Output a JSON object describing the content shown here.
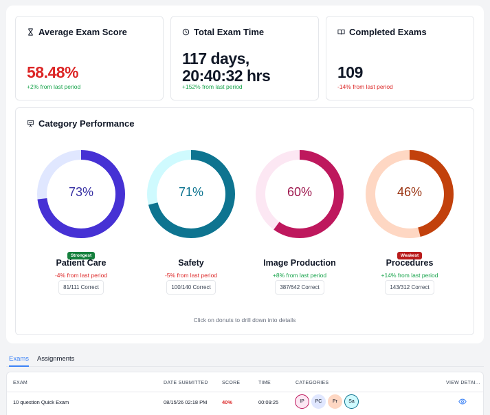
{
  "stats": [
    {
      "title": "Average Exam Score",
      "icon": "hourglass-icon",
      "value": "58.48%",
      "value_color": "#dc2626",
      "delta": "+2% from last period",
      "delta_type": "pos"
    },
    {
      "title": "Total Exam Time",
      "icon": "clock-icon",
      "value_line1": "117 days,",
      "value_line2": "20:40:32 hrs",
      "delta": "+152% from last period",
      "delta_type": "pos"
    },
    {
      "title": "Completed Exams",
      "icon": "book-icon",
      "value": "109",
      "delta": "-14% from last period",
      "delta_type": "neg"
    }
  ],
  "category_performance": {
    "title": "Category Performance",
    "icon": "presentation-icon",
    "hint": "Click on donuts to drill down into details",
    "categories": [
      {
        "name": "Patient Care",
        "percent": 73,
        "percent_label": "73%",
        "color": "#4631d4",
        "track": "#e0e7ff",
        "text_color": "#3730a3",
        "badge": "Strongest",
        "badge_color": "#15803d",
        "delta": "-4% from last period",
        "delta_type": "neg",
        "correct": "81/111 Correct"
      },
      {
        "name": "Safety",
        "percent": 71,
        "percent_label": "71%",
        "color": "#0e7490",
        "track": "#cffafe",
        "text_color": "#0e7490",
        "badge": "",
        "delta": "-5% from last period",
        "delta_type": "neg",
        "correct": "100/140 Correct"
      },
      {
        "name": "Image Production",
        "percent": 60,
        "percent_label": "60%",
        "color": "#be185d",
        "track": "#fce7f3",
        "text_color": "#9d174d",
        "badge": "",
        "delta": "+8% from last period",
        "delta_type": "pos",
        "correct": "387/642 Correct"
      },
      {
        "name": "Procedures",
        "percent": 46,
        "percent_label": "46%",
        "color": "#c2410c",
        "track": "#fed7c3",
        "text_color": "#9a3412",
        "badge": "Weakest",
        "badge_color": "#b91c1c",
        "delta": "+14% from last period",
        "delta_type": "pos",
        "correct": "143/312 Correct"
      }
    ]
  },
  "tabs": [
    {
      "label": "Exams",
      "active": true
    },
    {
      "label": "Assignments",
      "active": false
    }
  ],
  "table": {
    "headers": {
      "exam": "EXAM",
      "date": "DATE SUBMITTED",
      "score": "SCORE",
      "time": "TIME",
      "categories": "CATEGORIES",
      "view": "VIEW DETAI..."
    },
    "rows": [
      {
        "exam": "10 question Quick Exam",
        "date": "08/15/26 02:18 PM",
        "score": "40%",
        "time": "00:09:25",
        "chips": [
          {
            "label": "IP",
            "bg": "#fce7f3",
            "border": "#be185d"
          },
          {
            "label": "PC",
            "bg": "#e0e7ff",
            "border": "#e0e7ff"
          },
          {
            "label": "Pr",
            "bg": "#fed7c3",
            "border": "#fed7c3"
          },
          {
            "label": "Sa",
            "bg": "#cffafe",
            "border": "#0e7490"
          }
        ]
      }
    ]
  }
}
